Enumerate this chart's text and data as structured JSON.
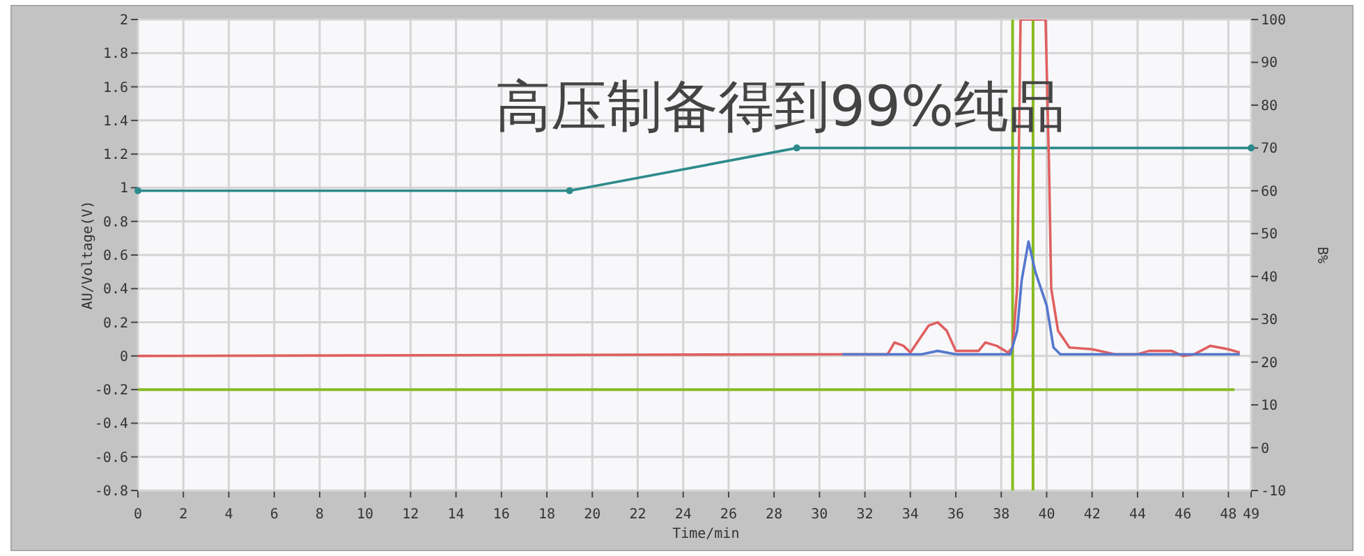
{
  "chart_data": {
    "type": "line",
    "title": "高压制备得到99%纯品",
    "xlabel": "Time/min",
    "ylabel": "AU/Voltage(V)",
    "y2label": "B%",
    "xlim": [
      0,
      49
    ],
    "xticks": [
      0,
      2,
      4,
      6,
      8,
      10,
      12,
      14,
      16,
      18,
      20,
      22,
      24,
      26,
      28,
      30,
      32,
      34,
      36,
      38,
      40,
      42,
      44,
      46,
      48,
      49
    ],
    "ylim": [
      -0.8,
      2
    ],
    "yticks": [
      {
        "value": -0.8,
        "label": "-0.8"
      },
      {
        "value": -0.6,
        "label": "-0.6"
      },
      {
        "value": -0.4,
        "label": "-0.4"
      },
      {
        "value": -0.2,
        "label": "-0.2"
      },
      0,
      {
        "value": 0.2,
        "label": "0.2"
      },
      {
        "value": 0.4,
        "label": "0.4"
      },
      {
        "value": 0.6,
        "label": "0.6"
      },
      {
        "value": 0.8,
        "label": "0.8"
      },
      1,
      {
        "value": 1.2,
        "label": "1.2"
      },
      {
        "value": 1.4,
        "label": "1.4"
      },
      {
        "value": 1.6,
        "label": "1.6"
      },
      {
        "value": 1.8,
        "label": "1.8"
      },
      2
    ],
    "y2lim": [
      -10,
      100
    ],
    "y2ticks": [
      -10,
      0,
      10,
      20,
      30,
      40,
      50,
      60,
      70,
      80,
      90,
      100
    ],
    "grid": true,
    "series": [
      {
        "color": "#2e8b8b",
        "axis": "y2",
        "marker": "circle",
        "x": [
          0,
          19,
          29,
          49
        ],
        "values": [
          60,
          60,
          70,
          70
        ]
      },
      {
        "color": "#e06060",
        "x": [
          0,
          31,
          33,
          33.3,
          33.7,
          34,
          34.8,
          35.2,
          35.6,
          36,
          37,
          37.3,
          37.8,
          38.3,
          38.5,
          38.7,
          38.85,
          39.95,
          40.1,
          40.2,
          40.5,
          41,
          42,
          43,
          44,
          44.5,
          45.5,
          46,
          46.5,
          47.2,
          48,
          48.5
        ],
        "values": [
          0,
          0.01,
          0.01,
          0.08,
          0.06,
          0.02,
          0.18,
          0.2,
          0.15,
          0.03,
          0.03,
          0.08,
          0.06,
          0.02,
          0.05,
          0.4,
          2,
          2,
          1.15,
          0.4,
          0.15,
          0.05,
          0.04,
          0.01,
          0.01,
          0.03,
          0.03,
          0,
          0.01,
          0.06,
          0.04,
          0.02
        ]
      },
      {
        "color": "#5577cc",
        "x": [
          31,
          34.5,
          35.2,
          36,
          38.4,
          38.7,
          38.9,
          39.2,
          39.5,
          40,
          40.3,
          40.6,
          48.5
        ],
        "values": [
          0.01,
          0.01,
          0.03,
          0.01,
          0.01,
          0.15,
          0.45,
          0.68,
          0.5,
          0.3,
          0.05,
          0.01,
          0.01
        ]
      }
    ],
    "ref_lines": [
      {
        "axis": "y",
        "value": -0.2,
        "color": "#88bb22"
      },
      {
        "axis": "x",
        "value": 38.5,
        "color": "#88bb22"
      },
      {
        "axis": "x",
        "value": 39.4,
        "color": "#88bb22"
      }
    ]
  }
}
